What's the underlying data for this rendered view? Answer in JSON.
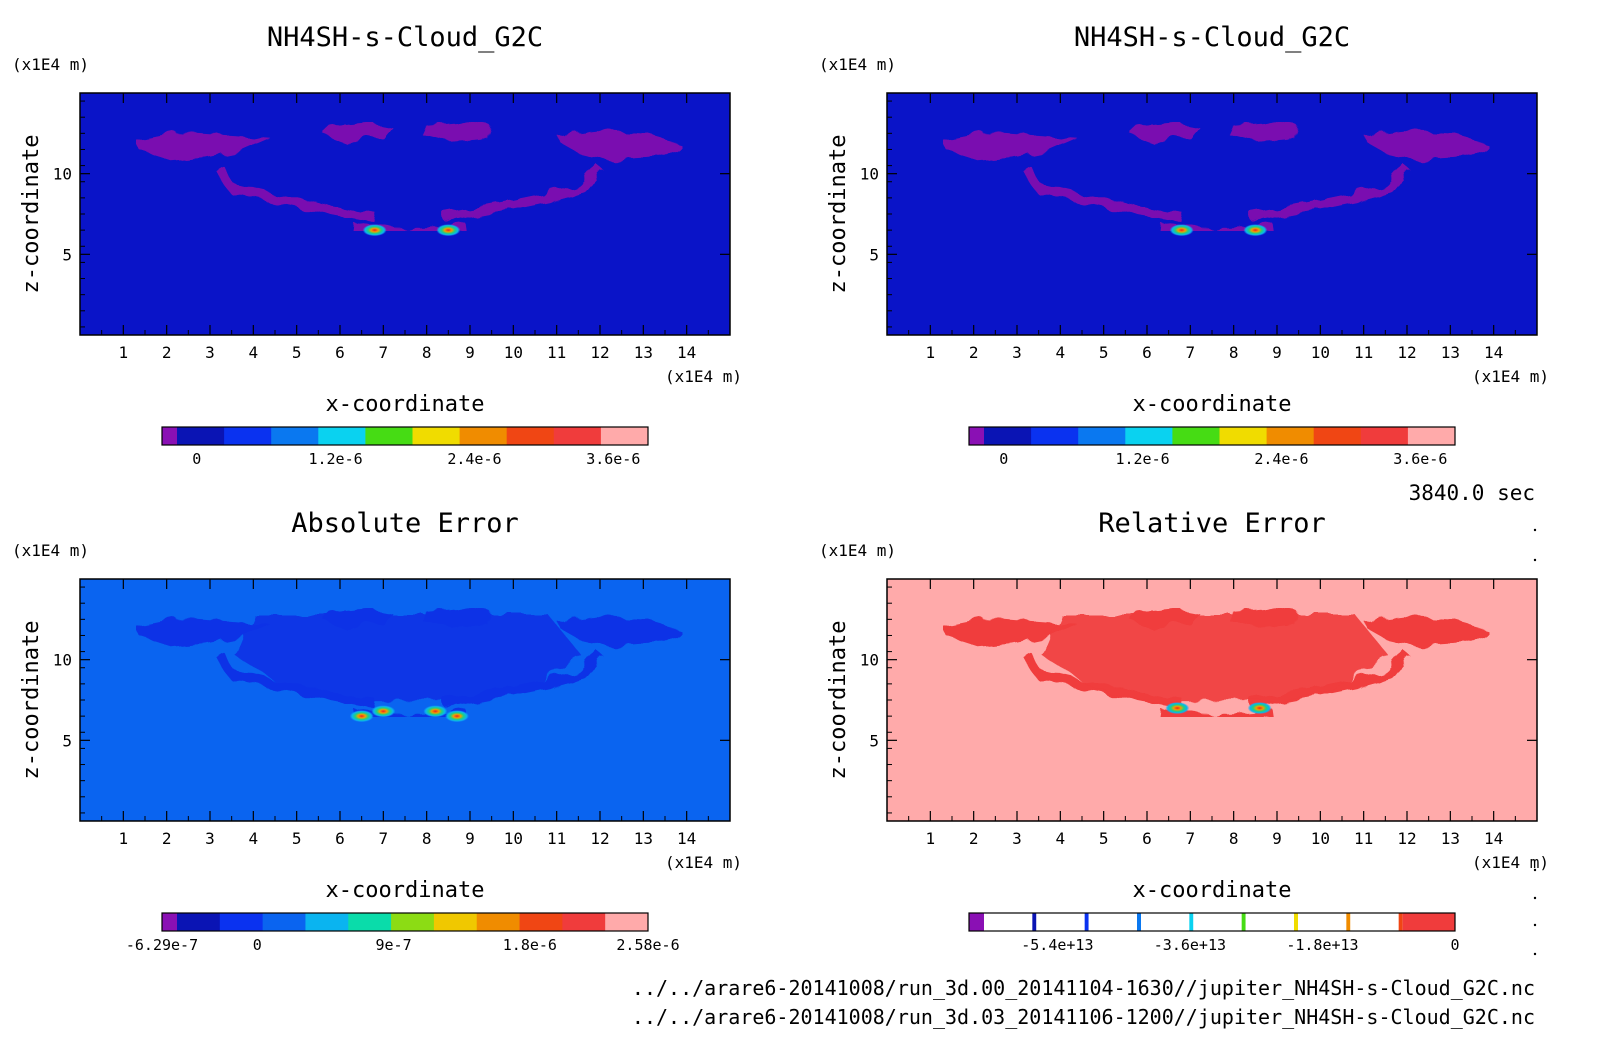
{
  "time_label": "3840.0 sec",
  "files": [
    "../../arare6-20141008/run_3d.00_20141104-1630//jupiter_NH4SH-s-Cloud_G2C.nc",
    "../../arare6-20141008/run_3d.03_20141106-1200//jupiter_NH4SH-s-Cloud_G2C.nc"
  ],
  "chart_data": [
    {
      "type": "heatmap",
      "title": "NH4SH-s-Cloud_G2C",
      "xlabel": "x-coordinate",
      "ylabel": "z-coordinate",
      "x_unit": "(x1E4 m)",
      "y_unit": "(x1E4 m)",
      "xlim": [
        0,
        15
      ],
      "ylim": [
        0,
        15
      ],
      "x_ticks": [
        "1",
        "2",
        "3",
        "4",
        "5",
        "6",
        "7",
        "8",
        "9",
        "10",
        "11",
        "12",
        "13",
        "14"
      ],
      "y_ticks": [
        "5",
        "10"
      ],
      "background_color": "#0a14c8",
      "pattern_color": "#7a10b0",
      "hotspots": [
        [
          6.8,
          6.5
        ],
        [
          8.5,
          6.5
        ]
      ],
      "colorbar": {
        "colors": [
          "#8a10b4",
          "#0a14b4",
          "#0a32f0",
          "#0a78f0",
          "#0ad2f0",
          "#46dc14",
          "#f0dc00",
          "#f08c00",
          "#f04614",
          "#f03c3c",
          "#ffaaaa"
        ],
        "tick_labels": [
          "0",
          "1.2e-6",
          "2.4e-6",
          "3.6e-6"
        ],
        "tick_values": [
          0,
          1.2e-06,
          2.4e-06,
          3.6e-06
        ],
        "range": [
          -3e-07,
          3.9e-06
        ]
      }
    },
    {
      "type": "heatmap",
      "title": "NH4SH-s-Cloud_G2C",
      "xlabel": "x-coordinate",
      "ylabel": "z-coordinate",
      "x_unit": "(x1E4 m)",
      "y_unit": "(x1E4 m)",
      "xlim": [
        0,
        15
      ],
      "ylim": [
        0,
        15
      ],
      "x_ticks": [
        "1",
        "2",
        "3",
        "4",
        "5",
        "6",
        "7",
        "8",
        "9",
        "10",
        "11",
        "12",
        "13",
        "14"
      ],
      "y_ticks": [
        "5",
        "10"
      ],
      "background_color": "#0a14c8",
      "pattern_color": "#7a10b0",
      "hotspots": [
        [
          6.8,
          6.5
        ],
        [
          8.5,
          6.5
        ]
      ],
      "colorbar": {
        "colors": [
          "#8a10b4",
          "#0a14b4",
          "#0a32f0",
          "#0a78f0",
          "#0ad2f0",
          "#46dc14",
          "#f0dc00",
          "#f08c00",
          "#f04614",
          "#f03c3c",
          "#ffaaaa"
        ],
        "tick_labels": [
          "0",
          "1.2e-6",
          "2.4e-6",
          "3.6e-6"
        ],
        "tick_values": [
          0,
          1.2e-06,
          2.4e-06,
          3.6e-06
        ],
        "range": [
          -3e-07,
          3.9e-06
        ]
      }
    },
    {
      "type": "heatmap",
      "title": "Absolute Error",
      "xlabel": "x-coordinate",
      "ylabel": "z-coordinate",
      "x_unit": "(x1E4 m)",
      "y_unit": "(x1E4 m)",
      "xlim": [
        0,
        15
      ],
      "ylim": [
        0,
        15
      ],
      "x_ticks": [
        "1",
        "2",
        "3",
        "4",
        "5",
        "6",
        "7",
        "8",
        "9",
        "10",
        "11",
        "12",
        "13",
        "14"
      ],
      "y_ticks": [
        "5",
        "10"
      ],
      "background_color": "#0a64f0",
      "pattern_color": "#0a32e6",
      "hotspots": [
        [
          6.5,
          6.5
        ],
        [
          7.0,
          6.8
        ],
        [
          8.2,
          6.8
        ],
        [
          8.7,
          6.5
        ]
      ],
      "colorbar": {
        "colors": [
          "#8a10b4",
          "#0a14b4",
          "#0a32f0",
          "#0a64f0",
          "#0ab4f0",
          "#0adcaa",
          "#8cdc14",
          "#f0c800",
          "#f08c00",
          "#f04614",
          "#f03c3c",
          "#ffaaaa"
        ],
        "tick_labels": [
          "-6.29e-7",
          "0",
          "9e-7",
          "1.8e-6",
          "2.58e-6"
        ],
        "tick_values": [
          -6.29e-07,
          0,
          9e-07,
          1.8e-06,
          2.58e-06
        ],
        "range": [
          -6.29e-07,
          2.58e-06
        ]
      }
    },
    {
      "type": "heatmap",
      "title": "Relative Error",
      "xlabel": "x-coordinate",
      "ylabel": "z-coordinate",
      "x_unit": "(x1E4 m)",
      "y_unit": "(x1E4 m)",
      "xlim": [
        0,
        15
      ],
      "ylim": [
        0,
        15
      ],
      "x_ticks": [
        "1",
        "2",
        "3",
        "4",
        "5",
        "6",
        "7",
        "8",
        "9",
        "10",
        "11",
        "12",
        "13",
        "14"
      ],
      "y_ticks": [
        "5",
        "10"
      ],
      "background_color": "#ffaaaa",
      "pattern_color": "#f03c3c",
      "hotspots": [
        [
          6.7,
          7.0
        ],
        [
          8.6,
          7.0
        ]
      ],
      "colorbar": {
        "colors": [
          "#8a10b4",
          "#0a14b4",
          "#0a32f0",
          "#0a78f0",
          "#0ad2f0",
          "#46dc14",
          "#f0dc00",
          "#f08c00",
          "#f04614",
          "#f03c3c"
        ],
        "tick_labels": [
          "-5.4e+13",
          "-3.6e+13",
          "-1.8e+13",
          "0"
        ],
        "tick_values": [
          -54000000000000.0,
          -36000000000000.0,
          -18000000000000.0,
          0
        ],
        "range": [
          -66000000000000.0,
          0
        ]
      }
    }
  ]
}
